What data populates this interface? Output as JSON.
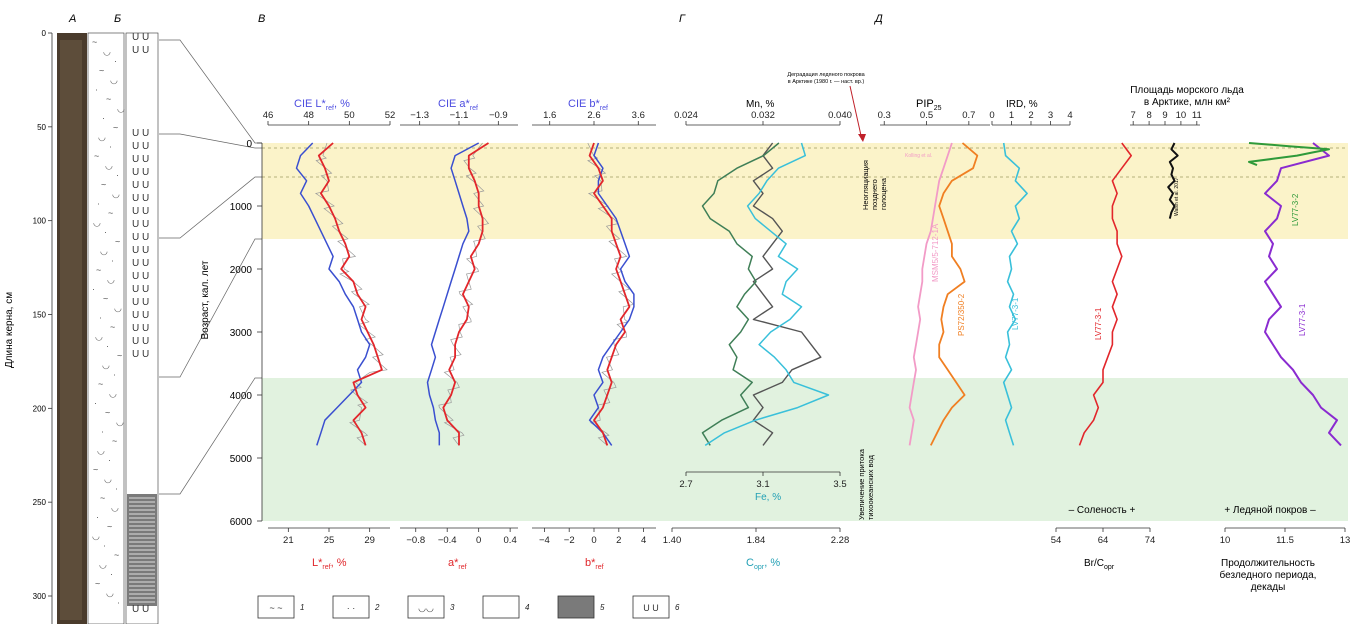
{
  "colors": {
    "red": "#e2262b",
    "blue": "#3a4fd0",
    "grey": "#9a9a9a",
    "darkgreen": "#3f7f57",
    "cyan": "#39c0da",
    "darkgrey": "#555555",
    "pink": "#f29bc7",
    "orange": "#f07f22",
    "black": "#111111",
    "green": "#2f9a3a",
    "purple": "#8a2bd0",
    "band_yellow": "#fbf3c9",
    "band_green": "#e1f2df",
    "label_blue": "#4d4de0",
    "label_red": "#e0262b",
    "label_teal": "#23a0b5"
  },
  "panel_letters": [
    "А",
    "Б",
    "В",
    "Г",
    "Д"
  ],
  "core_depth": {
    "label": "Длина керна, см",
    "ticks": [
      "0",
      "50",
      "100",
      "150",
      "200",
      "250",
      "300"
    ]
  },
  "age_axis": {
    "label": "Возраст, кал. лет",
    "ticks": [
      "0",
      "1000",
      "2000",
      "3000",
      "4000",
      "5000",
      "6000"
    ]
  },
  "legend": [
    "1",
    "2",
    "3",
    "4",
    "5",
    "6"
  ],
  "labels": {
    "cie_L": "CIE L*",
    "cie_L_sub": "ref",
    "cie_L_unit": ", %",
    "cie_a": "CIE a*",
    "cie_a_sub": "ref",
    "cie_b": "CIE b*",
    "cie_b_sub": "ref",
    "L_bottom": "L*",
    "L_bottom_sub": "ref",
    "L_bottom_unit": ", %",
    "a_bottom": "a*",
    "a_bottom_sub": "ref",
    "b_bottom": "b*",
    "b_bottom_sub": "ref",
    "mn": "Mn, %",
    "fe": "Fe, %",
    "corg": "C",
    "corg_sub": "орг",
    "corg_unit": ", %",
    "pip": "PIP",
    "pip_sub": "25",
    "ird": "IRD, %",
    "sea_ice_1": "Площадь морского льда",
    "sea_ice_2": "в Арктике, млн км²",
    "brcorg": "Br/C",
    "brcorg_sub": "орг",
    "salinity": "– Соленость +",
    "ice_cover": "+ Ледяной покров –",
    "ice_free_1": "Продолжительность",
    "ice_free_2": "безледного периода,",
    "ice_free_3": "декады",
    "degradation_1": "Деградация ледяного покрова",
    "degradation_2": "в Арктике (1980 г. — наст. вр.)",
    "neoglac": [
      "Неогляциация",
      "позднего",
      "голоцена"
    ],
    "runoff": [
      "Увеличение притока",
      "тихоокеанских вод"
    ],
    "msm": "MSM5/5-712-1A",
    "ps": "PS72/350-2",
    "lv": "LV77-3-1",
    "lv_br": "LV77-3-1",
    "lv_ice": "LV77-3-1",
    "lv_green": "LV77-3-2",
    "walsh": "Walsh et al. 2017",
    "small_pink": "Kolling et al."
  },
  "axes_top": {
    "L": [
      "46",
      "48",
      "50",
      "52"
    ],
    "a": [
      "−1.3",
      "−1.1",
      "−0.9"
    ],
    "b": [
      "1.6",
      "2.6",
      "3.6"
    ],
    "mn": [
      "0.024",
      "0.032",
      "0.040"
    ],
    "pip": [
      "0.3",
      "0.5",
      "0.7"
    ],
    "ird": [
      "0",
      "1",
      "2",
      "3",
      "4"
    ],
    "ice": [
      "7",
      "8",
      "9",
      "10",
      "11"
    ]
  },
  "axes_bottom": {
    "L": [
      "21",
      "25",
      "29"
    ],
    "a": [
      "−0.8",
      "−0.4",
      "0",
      "0.4"
    ],
    "b": [
      "−4",
      "−2",
      "0",
      "2",
      "4"
    ],
    "corg": [
      "1.40",
      "1.84",
      "2.28"
    ],
    "fe": [
      "2.7",
      "3.1",
      "3.5"
    ],
    "br": [
      "54",
      "64",
      "74"
    ],
    "ice_free": [
      "10",
      "11.5",
      "13"
    ]
  },
  "chart_data": {
    "type": "line",
    "age": [
      0,
      200,
      400,
      600,
      800,
      1000,
      1200,
      1400,
      1600,
      1800,
      2000,
      2200,
      2400,
      2600,
      2800,
      3000,
      3200,
      3400,
      3600,
      3800,
      4000,
      4200,
      4400,
      4600,
      4800
    ],
    "series": [
      {
        "key": "L_red",
        "values": [
          49.2,
          48.5,
          48.8,
          49,
          48.6,
          49,
          49.3,
          49.5,
          49.8,
          50,
          49.6,
          50.2,
          50.4,
          50.8,
          50.6,
          50.9,
          51.2,
          51.4,
          51.6,
          50.2,
          50.4,
          50.8,
          50.2,
          50.6,
          50.8
        ]
      },
      {
        "key": "L_blue",
        "values": [
          48.2,
          47.6,
          47.4,
          47.9,
          47.6,
          48,
          48.3,
          48.6,
          48.9,
          49.2,
          49,
          49.5,
          49.8,
          50.2,
          50.4,
          50.6,
          51,
          50.8,
          50.4,
          50.6,
          50,
          49.4,
          48.8,
          48.6,
          48.4
        ]
      },
      {
        "key": "a_red",
        "values": [
          -0.95,
          -1.05,
          -1.05,
          -1.02,
          -1,
          -1.0,
          -0.98,
          -0.98,
          -1,
          -1.04,
          -1.02,
          -1.05,
          -1.08,
          -1.05,
          -1.06,
          -1.1,
          -1.12,
          -1.12,
          -1.15,
          -1.12,
          -1.14,
          -1.18,
          -1.16,
          -1.1,
          -1.1
        ]
      },
      {
        "key": "a_blue",
        "values": [
          -1.0,
          -1.12,
          -1.14,
          -1.12,
          -1.1,
          -1.08,
          -1.06,
          -1.05,
          -1.08,
          -1.1,
          -1.12,
          -1.14,
          -1.16,
          -1.18,
          -1.2,
          -1.22,
          -1.24,
          -1.22,
          -1.24,
          -1.26,
          -1.25,
          -1.23,
          -1.22,
          -1.2,
          -1.2
        ]
      },
      {
        "key": "b_red",
        "values": [
          2.6,
          2.5,
          2.7,
          2.8,
          2.6,
          2.8,
          3.0,
          3.0,
          3.1,
          3.2,
          3.1,
          3.2,
          3.3,
          3.4,
          3.2,
          3.3,
          3.1,
          3.0,
          2.9,
          3.0,
          2.9,
          2.8,
          2.6,
          2.8,
          2.9
        ]
      },
      {
        "key": "b_blue",
        "values": [
          2.7,
          2.6,
          2.8,
          2.7,
          2.7,
          2.9,
          3.1,
          3.2,
          3.3,
          3.4,
          3.2,
          3.3,
          3.5,
          3.5,
          3.4,
          3.2,
          3.0,
          2.8,
          2.7,
          2.8,
          2.6,
          2.7,
          2.5,
          2.8,
          3.0
        ]
      },
      {
        "key": "mn_grey",
        "values": [
          0.033,
          0.032,
          0.033,
          0.031,
          0.032,
          0.031,
          0.033,
          0.034,
          0.033,
          0.032,
          0.033,
          0.031,
          0.032,
          0.033,
          0.031,
          0.036,
          0.037,
          0.038,
          0.035,
          0.034,
          0.031,
          0.032,
          0.031,
          0.033,
          0.032
        ]
      },
      {
        "key": "corg_green",
        "values": [
          1.96,
          1.88,
          1.74,
          1.64,
          1.62,
          1.56,
          1.6,
          1.7,
          1.74,
          1.82,
          1.8,
          1.84,
          1.78,
          1.74,
          1.8,
          1.76,
          1.7,
          1.74,
          1.72,
          1.82,
          1.76,
          1.8,
          1.66,
          1.56,
          1.6
        ]
      },
      {
        "key": "fe_cyan",
        "values": [
          3.3,
          3.32,
          3.18,
          3.12,
          3.08,
          3.02,
          3.06,
          3.14,
          3.22,
          3.18,
          3.28,
          3.22,
          3.2,
          3.3,
          3.24,
          3.14,
          3.08,
          3.16,
          3.22,
          3.26,
          3.44,
          3.28,
          3.06,
          2.9,
          2.8
        ]
      },
      {
        "key": "pip_ps",
        "values": [
          0.67,
          0.74,
          0.72,
          0.62,
          0.58,
          0.56,
          0.58,
          0.6,
          0.62,
          0.62,
          0.66,
          0.68,
          0.6,
          0.58,
          0.57,
          0.58,
          0.56,
          0.56,
          0.6,
          0.64,
          0.68,
          0.62,
          0.58,
          0.55,
          0.52
        ]
      },
      {
        "key": "pip_msm",
        "values": [
          0.62,
          0.6,
          0.58,
          0.56,
          0.55,
          0.54,
          0.53,
          0.52,
          0.5,
          0.49,
          0.48,
          0.48,
          0.47,
          0.46,
          0.47,
          0.46,
          0.45,
          0.44,
          0.45,
          0.44,
          0.43,
          0.42,
          0.44,
          0.43,
          0.42
        ]
      },
      {
        "key": "ird",
        "values": [
          0.6,
          0.7,
          1.4,
          1.2,
          1.8,
          1.2,
          1.4,
          1.0,
          1.3,
          0.9,
          1.0,
          0.8,
          1.1,
          0.9,
          1.2,
          0.8,
          0.9,
          0.7,
          1.0,
          0.6,
          0.8,
          1.0,
          0.7,
          0.9,
          1.1
        ]
      },
      {
        "key": "br",
        "values": [
          68,
          70,
          68,
          66,
          67,
          66,
          66,
          67,
          67,
          68,
          67,
          66,
          67,
          66,
          67,
          66,
          66,
          65,
          64,
          64,
          62,
          63,
          62,
          60,
          59
        ]
      },
      {
        "key": "ice_free",
        "values": [
          12.2,
          12.6,
          11.4,
          11.3,
          11.0,
          11.4,
          11.3,
          11.0,
          11.2,
          11.1,
          11.3,
          11.0,
          11.2,
          11.4,
          11.1,
          11.0,
          11.2,
          11.4,
          11.7,
          11.9,
          12.2,
          12.4,
          12.8,
          12.6,
          12.9
        ]
      }
    ],
    "sea_ice": {
      "age": [
        0,
        100,
        200,
        300,
        400,
        500,
        600,
        700,
        800,
        900,
        1000,
        1100,
        1200
      ],
      "values": [
        9.6,
        9.4,
        9.8,
        9.3,
        9.5,
        9.4,
        9.6,
        9.2,
        9.5,
        9.3,
        9.6,
        9.4,
        9.3
      ]
    },
    "ice_free_green": {
      "age": [
        0,
        50,
        100,
        150,
        200,
        250,
        300,
        350
      ],
      "values": [
        10.6,
        11.6,
        12.6,
        12.2,
        11.8,
        11.2,
        10.6,
        10.8
      ]
    }
  }
}
